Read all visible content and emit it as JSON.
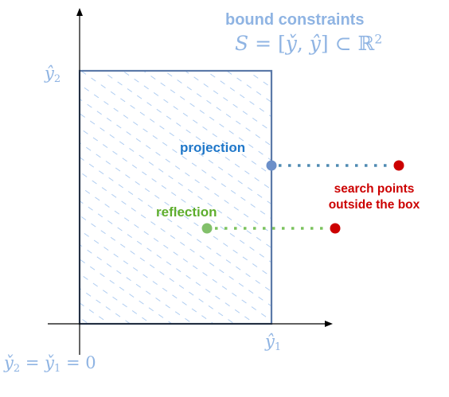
{
  "title": {
    "text": "bound constraints",
    "formula_lhs": "S",
    "formula_eq": "=",
    "formula_lower": "y̌",
    "formula_comma": ",",
    "formula_upper": "ŷ",
    "formula_subset": "⊂",
    "formula_space": "ℝ",
    "formula_power": "2"
  },
  "axes": {
    "y_upper_symbol": "ŷ",
    "y_upper_index": "2",
    "x_upper_symbol": "ŷ",
    "x_upper_index": "1",
    "origin_a_symbol": "y̌",
    "origin_a_index": "2",
    "origin_eq1": "=",
    "origin_b_symbol": "y̌",
    "origin_b_index": "1",
    "origin_eq2": "=",
    "origin_value": "0"
  },
  "annotations": {
    "projection": "projection",
    "reflection": "reflection",
    "search_line1": "search points",
    "search_line2": "outside the box"
  },
  "colors": {
    "axis": "#000000",
    "box_border": "#5b79a8",
    "hatch": "#9cc1ee",
    "projection_point": "#6b8fc9",
    "projection_line": "#4e8ab2",
    "reflection_point": "#82c06a",
    "reflection_line": "#7cc35e",
    "search_point": "#cc0000"
  }
}
